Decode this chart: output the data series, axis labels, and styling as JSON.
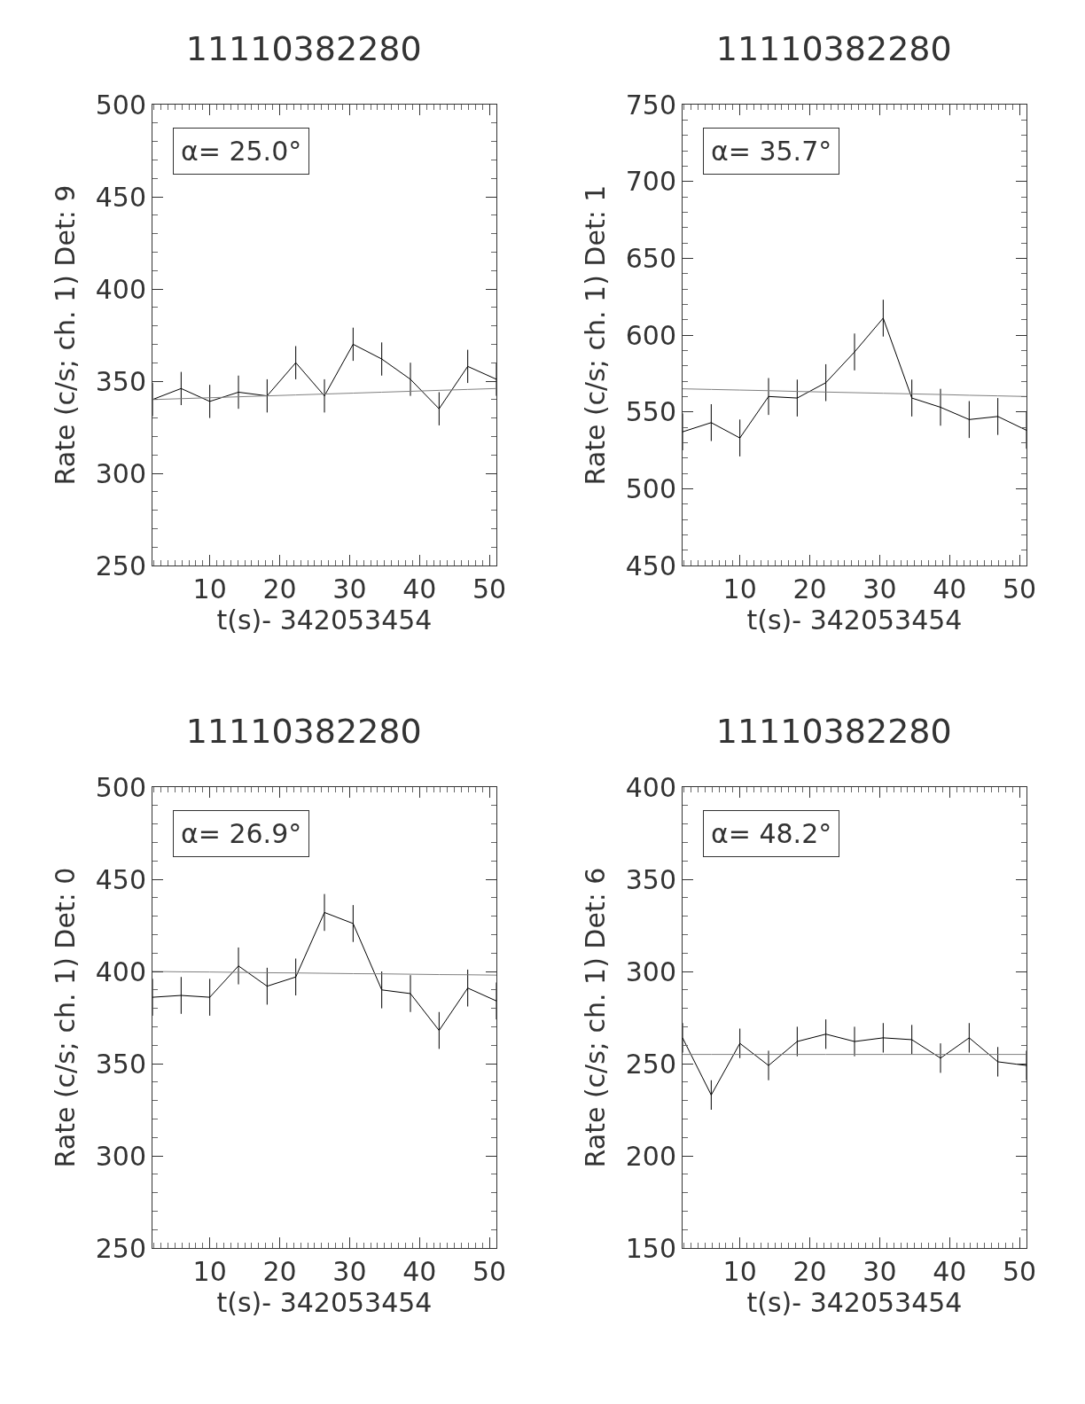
{
  "chart_data": [
    {
      "type": "line",
      "title": "11110382280",
      "xlabel": "t(s)- 342053454",
      "ylabel": "Rate (c/s; ch. 1) Det: 9",
      "annotations": [
        "α= 25.0°"
      ],
      "grid": false,
      "marker": "none",
      "x": [
        1.8,
        5.9,
        10.0,
        14.1,
        18.2,
        22.3,
        26.4,
        30.5,
        34.6,
        38.7,
        42.8,
        46.9,
        51.0
      ],
      "series": [
        {
          "color": "#000000",
          "values": [
            340,
            346,
            339,
            344,
            342,
            360,
            342,
            370,
            362,
            351,
            335,
            358,
            351
          ],
          "errors": [
            9,
            9,
            9,
            9,
            9,
            9,
            9,
            9,
            9,
            9,
            9,
            9,
            9
          ]
        },
        {
          "color": "#808080",
          "values": [
            340,
            340.5,
            341,
            341.5,
            342,
            342.5,
            343,
            343.5,
            344,
            344.5,
            345,
            345.5,
            346
          ]
        }
      ],
      "xlim": [
        1.8,
        51.0
      ],
      "xticks": [
        10,
        20,
        30,
        40,
        50
      ],
      "ylim": [
        250,
        500
      ],
      "yticks": [
        250,
        300,
        350,
        400,
        450,
        500
      ]
    },
    {
      "type": "line",
      "title": "11110382280",
      "xlabel": "t(s)- 342053454",
      "ylabel": "Rate (c/s; ch. 1) Det: 1",
      "annotations": [
        "α= 35.7°"
      ],
      "grid": false,
      "marker": "none",
      "x": [
        1.8,
        5.9,
        10.0,
        14.1,
        18.2,
        22.3,
        26.4,
        30.5,
        34.6,
        38.7,
        42.8,
        46.9,
        51.0
      ],
      "series": [
        {
          "color": "#000000",
          "values": [
            537,
            543,
            533,
            560,
            559,
            569,
            589,
            611,
            559,
            553,
            545,
            547,
            538
          ],
          "errors": [
            12,
            12,
            12,
            12,
            12,
            12,
            12,
            12,
            12,
            12,
            12,
            12,
            12
          ]
        },
        {
          "color": "#808080",
          "values": [
            565,
            564.6,
            564.2,
            563.8,
            563.3,
            562.9,
            562.5,
            562.1,
            561.7,
            561.3,
            560.8,
            560.4,
            560
          ]
        }
      ],
      "xlim": [
        1.8,
        51.0
      ],
      "xticks": [
        10,
        20,
        30,
        40,
        50
      ],
      "ylim": [
        450,
        750
      ],
      "yticks": [
        450,
        500,
        550,
        600,
        650,
        700,
        750
      ]
    },
    {
      "type": "line",
      "title": "11110382280",
      "xlabel": "t(s)- 342053454",
      "ylabel": "Rate (c/s; ch. 1) Det: 0",
      "annotations": [
        "α= 26.9°"
      ],
      "grid": false,
      "marker": "none",
      "x": [
        1.8,
        5.9,
        10.0,
        14.1,
        18.2,
        22.3,
        26.4,
        30.5,
        34.6,
        38.7,
        42.8,
        46.9,
        51.0
      ],
      "series": [
        {
          "color": "#000000",
          "values": [
            386,
            387,
            386,
            403,
            392,
            397,
            432,
            426,
            390,
            388,
            368,
            391,
            384
          ],
          "errors": [
            10,
            10,
            10,
            10,
            10,
            10,
            10,
            10,
            10,
            10,
            10,
            10,
            10
          ]
        },
        {
          "color": "#808080",
          "values": [
            400,
            399.8,
            399.7,
            399.5,
            399.3,
            399.2,
            399,
            398.8,
            398.7,
            398.5,
            398.3,
            398.2,
            398
          ]
        }
      ],
      "xlim": [
        1.8,
        51.0
      ],
      "xticks": [
        10,
        20,
        30,
        40,
        50
      ],
      "ylim": [
        250,
        500
      ],
      "yticks": [
        250,
        300,
        350,
        400,
        450,
        500
      ]
    },
    {
      "type": "line",
      "title": "11110382280",
      "xlabel": "t(s)- 342053454",
      "ylabel": "Rate (c/s; ch. 1) Det: 6",
      "annotations": [
        "α= 48.2°"
      ],
      "grid": false,
      "marker": "none",
      "x": [
        1.8,
        5.9,
        10.0,
        14.1,
        18.2,
        22.3,
        26.4,
        30.5,
        34.6,
        38.7,
        42.8,
        46.9,
        51.0
      ],
      "series": [
        {
          "color": "#000000",
          "values": [
            264,
            233,
            261,
            249,
            262,
            266,
            262,
            264,
            263,
            253,
            264,
            251,
            249
          ],
          "errors": [
            8,
            8,
            8,
            8,
            8,
            8,
            8,
            8,
            8,
            8,
            8,
            8,
            8
          ]
        },
        {
          "color": "#808080",
          "values": [
            255,
            255,
            255,
            255,
            255,
            255,
            255,
            255,
            255,
            255,
            255,
            255,
            255
          ]
        }
      ],
      "xlim": [
        1.8,
        51.0
      ],
      "xticks": [
        10,
        20,
        30,
        40,
        50
      ],
      "ylim": [
        150,
        400
      ],
      "yticks": [
        150,
        200,
        250,
        300,
        350,
        400
      ]
    }
  ]
}
